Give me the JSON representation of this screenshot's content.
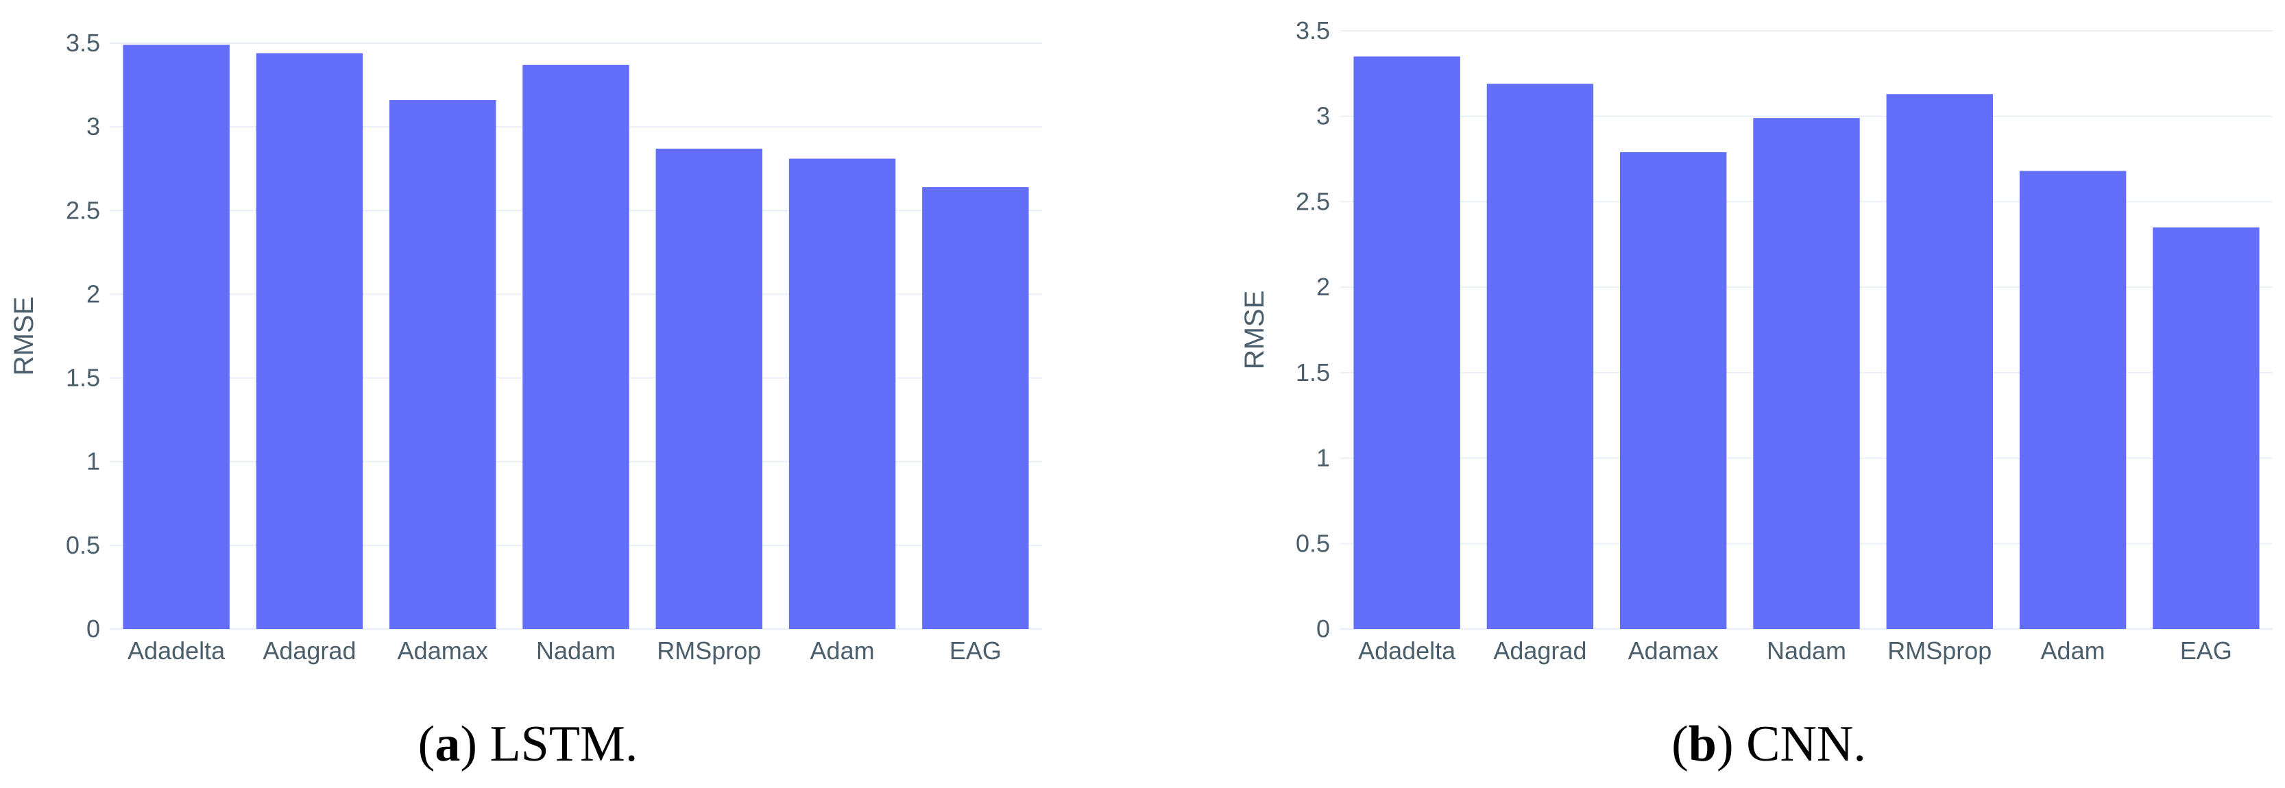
{
  "colors": {
    "bar": "#636efa",
    "grid": "#ebf0f8",
    "text": "#4a5e6b"
  },
  "chart_data": [
    {
      "type": "bar",
      "panel_letter": "a",
      "caption": "LSTM.",
      "title": "",
      "xlabel": "",
      "ylabel": "RMSE",
      "ylim": [
        0,
        3.5
      ],
      "yticks": [
        "0",
        "0.5",
        "1",
        "1.5",
        "2",
        "2.5",
        "3",
        "3.5"
      ],
      "grid": true,
      "categories": [
        "Adadelta",
        "Adagrad",
        "Adamax",
        "Nadam",
        "RMSprop",
        "Adam",
        "EAG"
      ],
      "values": [
        3.49,
        3.44,
        3.16,
        3.37,
        2.87,
        2.81,
        2.64
      ]
    },
    {
      "type": "bar",
      "panel_letter": "b",
      "caption": "CNN.",
      "title": "",
      "xlabel": "",
      "ylabel": "RMSE",
      "ylim": [
        0,
        3.5
      ],
      "yticks": [
        "0",
        "0.5",
        "1",
        "1.5",
        "2",
        "2.5",
        "3",
        "3.5"
      ],
      "grid": true,
      "categories": [
        "Adadelta",
        "Adagrad",
        "Adamax",
        "Nadam",
        "RMSprop",
        "Adam",
        "EAG"
      ],
      "values": [
        3.35,
        3.19,
        2.79,
        2.99,
        3.13,
        2.68,
        2.35
      ]
    }
  ]
}
